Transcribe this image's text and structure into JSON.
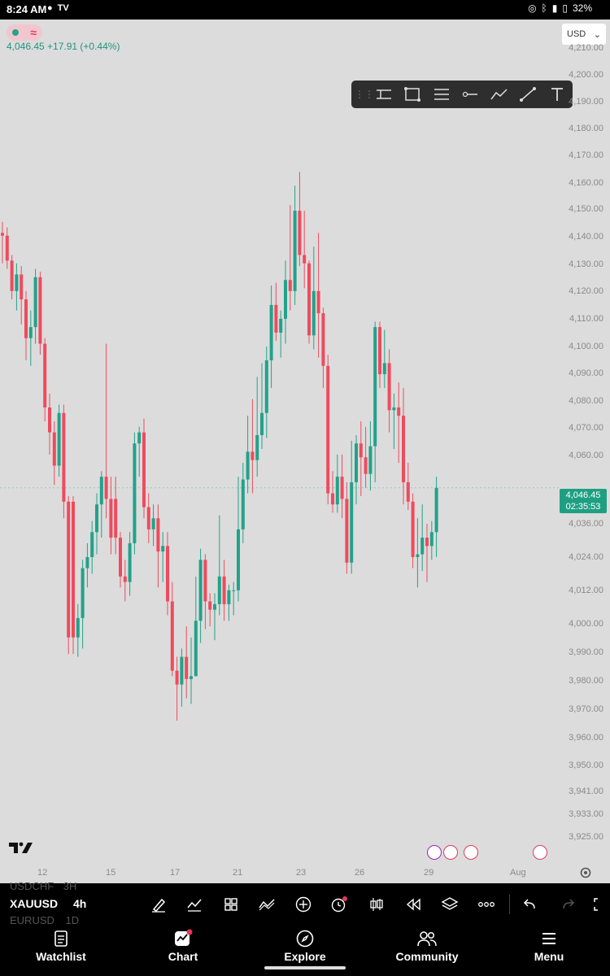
{
  "status_bar": {
    "time": "8:24 AM",
    "battery": "32%"
  },
  "chart": {
    "price_line": "4,046.45  +17.91 (+0.44%)",
    "currency": "USD",
    "last_price": "4,046.45",
    "countdown": "02:35:53",
    "colors": {
      "up": "#22a28a",
      "down": "#ee4b5e",
      "background": "#dcdcdc"
    }
  },
  "drawing_toolbar": {
    "tools": [
      "horizontal-ray-icon",
      "rectangle-icon",
      "price-range-icon",
      "horizontal-line-icon",
      "path-icon",
      "trend-line-icon",
      "text-icon"
    ]
  },
  "chart_data": {
    "type": "candlestick",
    "symbol": "XAUUSD",
    "timeframe": "4h",
    "y_ticks": [
      "4,210.00",
      "4,200.00",
      "4,190.00",
      "4,180.00",
      "4,170.00",
      "4,160.00",
      "4,150.00",
      "4,140.00",
      "4,130.00",
      "4,120.00",
      "4,110.00",
      "4,100.00",
      "4,090.00",
      "4,080.00",
      "4,070.00",
      "4,060.00",
      "4,036.00",
      "4,024.00",
      "4,012.00",
      "4,000.00",
      "3,990.00",
      "3,980.00",
      "3,970.00",
      "3,960.00",
      "3,950.00",
      "3,941.00",
      "3,933.00",
      "3,925.00"
    ],
    "x_ticks": [
      "12",
      "15",
      "17",
      "21",
      "23",
      "26",
      "29",
      "Aug"
    ],
    "ylim": [
      3920,
      4215
    ],
    "candles": [
      [
        4138,
        4137,
        4127,
        4142
      ],
      [
        4137,
        4128,
        4125,
        4140
      ],
      [
        4128,
        4117,
        4114,
        4130
      ],
      [
        4117,
        4123,
        4110,
        4127
      ],
      [
        4123,
        4114,
        4105,
        4126
      ],
      [
        4114,
        4100,
        4092,
        4117
      ],
      [
        4100,
        4104,
        4090,
        4110
      ],
      [
        4104,
        4122,
        4098,
        4125
      ],
      [
        4122,
        4098,
        4094,
        4124
      ],
      [
        4098,
        4075,
        4070,
        4100
      ],
      [
        4075,
        4066,
        4058,
        4080
      ],
      [
        4066,
        4054,
        4047,
        4070
      ],
      [
        4054,
        4073,
        4050,
        4076
      ],
      [
        4073,
        4041,
        4035,
        4076
      ],
      [
        4041,
        3992,
        3986,
        4043
      ],
      [
        4041,
        3992,
        3986,
        4043
      ],
      [
        3992,
        3999,
        3985,
        4004
      ],
      [
        3999,
        4017,
        3988,
        4020
      ],
      [
        4017,
        4021,
        4010,
        4026
      ],
      [
        4021,
        4030,
        4015,
        4034
      ],
      [
        4030,
        4040,
        4022,
        4044
      ],
      [
        4040,
        4050,
        4028,
        4052
      ],
      [
        4050,
        4042,
        4035,
        4098
      ],
      [
        4042,
        4028,
        4022,
        4050
      ],
      [
        4042,
        4028,
        4022,
        4050
      ],
      [
        4028,
        4014,
        4010,
        4030
      ],
      [
        4014,
        4012,
        4005,
        4020
      ],
      [
        4012,
        4026,
        4007,
        4030
      ],
      [
        4026,
        4062,
        4022,
        4066
      ],
      [
        4062,
        4066,
        4050,
        4068
      ],
      [
        4066,
        4039,
        4035,
        4071
      ],
      [
        4039,
        4031,
        4026,
        4044
      ],
      [
        4031,
        4035,
        4025,
        4040
      ],
      [
        4035,
        4023,
        4010,
        4040
      ],
      [
        4023,
        4025,
        4012,
        4030
      ],
      [
        4025,
        4005,
        4000,
        4030
      ],
      [
        4005,
        3980,
        3978,
        4012
      ],
      [
        3980,
        3975,
        3962,
        3985
      ],
      [
        3975,
        3985,
        3967,
        3988
      ],
      [
        3985,
        3977,
        3970,
        3996
      ],
      [
        3977,
        3978,
        3968,
        3992
      ],
      [
        3978,
        3998,
        3980,
        4014
      ],
      [
        3998,
        4020,
        3990,
        4024
      ],
      [
        4020,
        4005,
        3995,
        4022
      ],
      [
        4005,
        4002,
        3996,
        4008
      ],
      [
        4002,
        4004,
        3991,
        4008
      ],
      [
        4004,
        4014,
        4000,
        4036
      ],
      [
        4014,
        4004,
        3998,
        4020
      ],
      [
        4004,
        4009,
        3998,
        4011
      ],
      [
        4009,
        4009,
        4000,
        4012
      ],
      [
        4009,
        4031,
        4005,
        4050
      ],
      [
        4031,
        4049,
        4026,
        4055
      ],
      [
        4049,
        4059,
        4044,
        4072
      ],
      [
        4059,
        4056,
        4044,
        4078
      ],
      [
        4056,
        4065,
        4050,
        4086
      ],
      [
        4065,
        4073,
        4060,
        4091
      ],
      [
        4073,
        4092,
        4064,
        4097
      ],
      [
        4092,
        4112,
        4082,
        4119
      ],
      [
        4112,
        4102,
        4099,
        4120
      ],
      [
        4102,
        4107,
        4093,
        4110
      ],
      [
        4107,
        4121,
        4098,
        4128
      ],
      [
        4121,
        4117,
        4110,
        4148
      ],
      [
        4117,
        4146,
        4112,
        4155
      ],
      [
        4146,
        4130,
        4126,
        4160
      ],
      [
        4130,
        4127,
        4118,
        4146
      ],
      [
        4127,
        4101,
        4098,
        4128
      ],
      [
        4101,
        4117,
        4096,
        4133
      ],
      [
        4117,
        4109,
        4093,
        4138
      ],
      [
        4109,
        4090,
        4082,
        4111
      ],
      [
        4090,
        4044,
        4040,
        4094
      ],
      [
        4044,
        4040,
        4037,
        4052
      ],
      [
        4040,
        4050,
        4037,
        4058
      ],
      [
        4050,
        4042,
        4035,
        4058
      ],
      [
        4042,
        4019,
        4015,
        4048
      ],
      [
        4019,
        4048,
        4015,
        4063
      ],
      [
        4048,
        4062,
        4040,
        4065
      ],
      [
        4062,
        4057,
        4043,
        4070
      ],
      [
        4057,
        4051,
        4046,
        4068
      ],
      [
        4051,
        4061,
        4045,
        4070
      ],
      [
        4061,
        4104,
        4048,
        4106
      ],
      [
        4104,
        4087,
        4082,
        4106
      ],
      [
        4087,
        4091,
        4082,
        4103
      ],
      [
        4091,
        4074,
        4066,
        4096
      ],
      [
        4074,
        4075,
        4060,
        4080
      ],
      [
        4075,
        4072,
        4055,
        4084
      ],
      [
        4072,
        4048,
        4040,
        4082
      ],
      [
        4048,
        4041,
        4038,
        4055
      ],
      [
        4041,
        4021,
        4017,
        4044
      ],
      [
        4021,
        4022,
        4010,
        4035
      ],
      [
        4022,
        4028,
        4016,
        4040
      ],
      [
        4028,
        4025,
        4012,
        4033
      ],
      [
        4025,
        4030,
        4020,
        4034
      ],
      [
        4030,
        4046,
        4021,
        4050
      ]
    ]
  },
  "events": [
    "flash-event-icon",
    "us-flag-icon",
    "us-flag-icon",
    "us-flag-icon"
  ],
  "bottom_toolbar": {
    "symbol_prev": "USDCHF",
    "symbol_prev_tf": "3H",
    "symbol": "XAUUSD",
    "timeframe": "4h",
    "symbol_next": "EURUSD",
    "symbol_next_tf": "1D"
  },
  "nav": {
    "items": [
      {
        "label": "Watchlist",
        "icon": "watchlist-icon"
      },
      {
        "label": "Chart",
        "icon": "chart-icon"
      },
      {
        "label": "Explore",
        "icon": "explore-icon"
      },
      {
        "label": "Community",
        "icon": "community-icon"
      },
      {
        "label": "Menu",
        "icon": "menu-icon"
      }
    ]
  }
}
